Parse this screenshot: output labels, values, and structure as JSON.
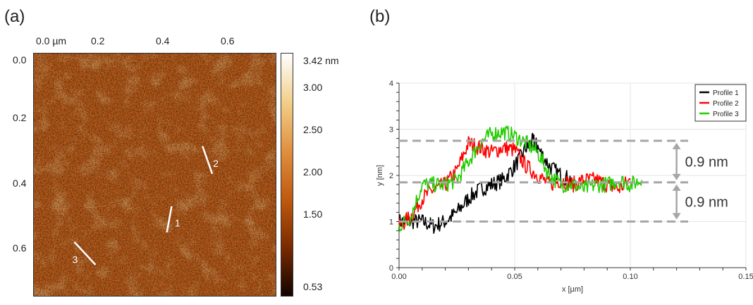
{
  "panel_a": {
    "label": "(a)",
    "x_ticks": [
      {
        "text": "0.0 µm",
        "value": 0.0
      },
      {
        "text": "0.2",
        "value": 0.2
      },
      {
        "text": "0.4",
        "value": 0.4
      },
      {
        "text": "0.6",
        "value": 0.6
      }
    ],
    "y_ticks": [
      {
        "text": "0.0",
        "value": 0.0
      },
      {
        "text": "0.2",
        "value": 0.2
      },
      {
        "text": "0.4",
        "value": 0.4
      },
      {
        "text": "0.6",
        "value": 0.6
      }
    ],
    "scan_range": [
      0,
      0.75
    ],
    "colorbar": {
      "colors": [
        "#120400",
        "#7a2a00",
        "#c05a10",
        "#e09040",
        "#f3cf8a",
        "#ffffff"
      ],
      "range": [
        0.53,
        3.42
      ],
      "ticks": [
        {
          "text": "3.42 nm",
          "value": 3.42
        },
        {
          "text": "3.00",
          "value": 3.0
        },
        {
          "text": "2.50",
          "value": 2.5
        },
        {
          "text": "2.00",
          "value": 2.0
        },
        {
          "text": "1.50",
          "value": 1.5
        },
        {
          "text": "0.53",
          "value": 0.53
        }
      ]
    },
    "profile_lines": [
      {
        "label": "1",
        "from": [
          0.425,
          0.47
        ],
        "to": [
          0.41,
          0.55
        ]
      },
      {
        "label": "2",
        "from": [
          0.52,
          0.285
        ],
        "to": [
          0.55,
          0.37
        ]
      },
      {
        "label": "3",
        "from": [
          0.125,
          0.58
        ],
        "to": [
          0.19,
          0.65
        ]
      }
    ]
  },
  "chart_data": {
    "type": "line",
    "panel_label": "(b)",
    "xlabel": "x [µm]",
    "ylabel": "y [nm]",
    "xlim": [
      0,
      0.15
    ],
    "ylim": [
      0,
      4
    ],
    "x_ticks": [
      {
        "text": "0.00",
        "value": 0
      },
      {
        "text": "0.05",
        "value": 0.05
      },
      {
        "text": "0.10",
        "value": 0.1
      },
      {
        "text": "0.15",
        "value": 0.15
      }
    ],
    "y_ticks": [
      {
        "text": "0",
        "value": 0
      },
      {
        "text": "1",
        "value": 1
      },
      {
        "text": "2",
        "value": 2
      },
      {
        "text": "3",
        "value": 3
      },
      {
        "text": "4",
        "value": 4
      }
    ],
    "grid": true,
    "legend_position": "top-right",
    "series": [
      {
        "name": "Profile 1",
        "color": "#000000",
        "x": [
          0.0,
          0.005,
          0.01,
          0.015,
          0.02,
          0.025,
          0.03,
          0.035,
          0.04,
          0.045,
          0.05,
          0.055,
          0.058,
          0.06,
          0.065,
          0.07,
          0.075
        ],
        "y": [
          1.0,
          1.0,
          1.0,
          0.9,
          1.0,
          1.2,
          1.5,
          1.7,
          1.8,
          1.9,
          2.2,
          2.6,
          2.75,
          2.6,
          2.2,
          2.0,
          1.9
        ]
      },
      {
        "name": "Profile 2",
        "color": "#ff0000",
        "x": [
          0.0,
          0.005,
          0.01,
          0.015,
          0.02,
          0.025,
          0.03,
          0.035,
          0.04,
          0.045,
          0.05,
          0.055,
          0.06,
          0.065,
          0.07,
          0.075,
          0.08,
          0.085,
          0.09,
          0.095,
          0.1
        ],
        "y": [
          0.9,
          1.1,
          1.5,
          1.7,
          1.8,
          2.1,
          2.7,
          2.6,
          2.5,
          2.6,
          2.55,
          2.2,
          2.0,
          1.8,
          1.9,
          1.8,
          1.9,
          1.9,
          1.8,
          1.7,
          1.9
        ]
      },
      {
        "name": "Profile 3",
        "color": "#22cc00",
        "x": [
          0.0,
          0.005,
          0.01,
          0.015,
          0.02,
          0.025,
          0.03,
          0.035,
          0.04,
          0.045,
          0.05,
          0.055,
          0.06,
          0.065,
          0.07,
          0.075,
          0.08,
          0.085,
          0.09,
          0.095,
          0.1,
          0.105
        ],
        "y": [
          0.9,
          1.1,
          1.8,
          1.8,
          1.8,
          1.9,
          2.3,
          2.7,
          2.9,
          2.95,
          2.85,
          2.7,
          2.5,
          2.0,
          1.8,
          1.8,
          1.7,
          1.8,
          1.8,
          1.9,
          1.8,
          1.9
        ]
      }
    ],
    "reference_lines": [
      {
        "y": 2.75,
        "x_end": 0.125
      },
      {
        "y": 1.85,
        "x_end": 0.125
      },
      {
        "y": 1.0,
        "x_end": 0.125
      }
    ],
    "annotations": [
      {
        "text": "0.9 nm",
        "y_from": 1.85,
        "y_to": 2.75
      },
      {
        "text": "0.9 nm",
        "y_from": 1.0,
        "y_to": 1.85
      }
    ]
  }
}
